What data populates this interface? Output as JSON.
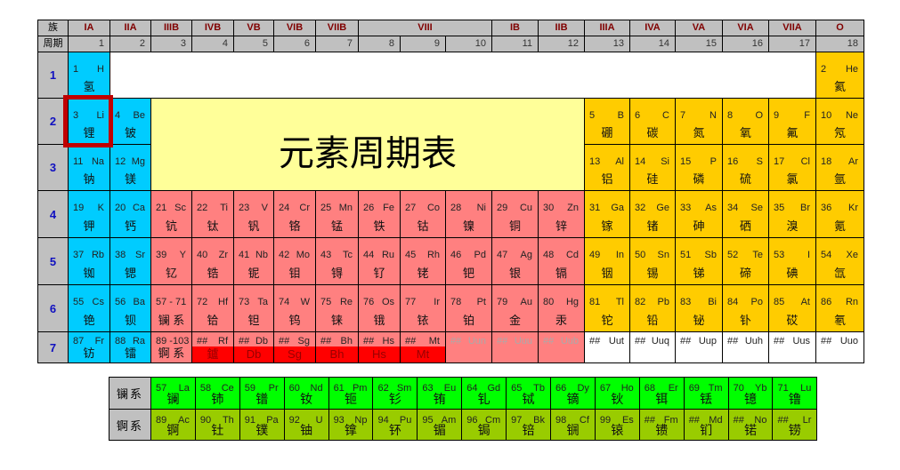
{
  "header": {
    "corner_top": "族",
    "corner_bottom": "周期",
    "groups": [
      {
        "label": "IA",
        "col": 1,
        "span": 1
      },
      {
        "label": "IIA",
        "col": 2,
        "span": 1
      },
      {
        "label": "IIIB",
        "col": 3,
        "span": 1
      },
      {
        "label": "IVB",
        "col": 4,
        "span": 1
      },
      {
        "label": "VB",
        "col": 5,
        "span": 1
      },
      {
        "label": "VIB",
        "col": 6,
        "span": 1
      },
      {
        "label": "VIIB",
        "col": 7,
        "span": 1
      },
      {
        "label": "VIII",
        "col": 8,
        "span": 3
      },
      {
        "label": "IB",
        "col": 11,
        "span": 1
      },
      {
        "label": "IIB",
        "col": 12,
        "span": 1
      },
      {
        "label": "IIIA",
        "col": 13,
        "span": 1
      },
      {
        "label": "IVA",
        "col": 14,
        "span": 1
      },
      {
        "label": "VA",
        "col": 15,
        "span": 1
      },
      {
        "label": "VIA",
        "col": 16,
        "span": 1
      },
      {
        "label": "VIIA",
        "col": 17,
        "span": 1
      },
      {
        "label": "O",
        "col": 18,
        "span": 1
      }
    ],
    "group_numbers": [
      "1",
      "2",
      "3",
      "4",
      "5",
      "6",
      "7",
      "8",
      "9",
      "10",
      "11",
      "12",
      "13",
      "14",
      "15",
      "16",
      "17",
      "18"
    ]
  },
  "periods": [
    "1",
    "2",
    "3",
    "4",
    "5",
    "6",
    "7"
  ],
  "title": "元素周期表",
  "highlighted_element": "Li",
  "colors": {
    "s_block": "#00ccff",
    "d_block": "#ff8080",
    "p_block": "#ffcc00",
    "lanthanide": "#00ff00",
    "actinide": "#99cc00",
    "title_bg": "#ffff99",
    "highlight": "#c00000",
    "superheavy": "#ff0000"
  },
  "elements": [
    [
      "1",
      "H",
      "氢",
      1,
      1,
      "s"
    ],
    [
      "2",
      "He",
      "氦",
      1,
      18,
      "p"
    ],
    [
      "3",
      "Li",
      "锂",
      2,
      1,
      "s"
    ],
    [
      "4",
      "Be",
      "铍",
      2,
      2,
      "s"
    ],
    [
      "5",
      "B",
      "硼",
      2,
      13,
      "p"
    ],
    [
      "6",
      "C",
      "碳",
      2,
      14,
      "p"
    ],
    [
      "7",
      "N",
      "氮",
      2,
      15,
      "p"
    ],
    [
      "8",
      "O",
      "氧",
      2,
      16,
      "p"
    ],
    [
      "9",
      "F",
      "氟",
      2,
      17,
      "p"
    ],
    [
      "10",
      "Ne",
      "氖",
      2,
      18,
      "p"
    ],
    [
      "11",
      "Na",
      "钠",
      3,
      1,
      "s"
    ],
    [
      "12",
      "Mg",
      "镁",
      3,
      2,
      "s"
    ],
    [
      "13",
      "Al",
      "铝",
      3,
      13,
      "p"
    ],
    [
      "14",
      "Si",
      "硅",
      3,
      14,
      "p"
    ],
    [
      "15",
      "P",
      "磷",
      3,
      15,
      "p"
    ],
    [
      "16",
      "S",
      "硫",
      3,
      16,
      "p"
    ],
    [
      "17",
      "Cl",
      "氯",
      3,
      17,
      "p"
    ],
    [
      "18",
      "Ar",
      "氩",
      3,
      18,
      "p"
    ],
    [
      "19",
      "K",
      "钾",
      4,
      1,
      "s"
    ],
    [
      "20",
      "Ca",
      "钙",
      4,
      2,
      "s"
    ],
    [
      "21",
      "Sc",
      "钪",
      4,
      3,
      "d"
    ],
    [
      "22",
      "Ti",
      "钛",
      4,
      4,
      "d"
    ],
    [
      "23",
      "V",
      "钒",
      4,
      5,
      "d"
    ],
    [
      "24",
      "Cr",
      "铬",
      4,
      6,
      "d"
    ],
    [
      "25",
      "Mn",
      "锰",
      4,
      7,
      "d"
    ],
    [
      "26",
      "Fe",
      "铁",
      4,
      8,
      "d"
    ],
    [
      "27",
      "Co",
      "钴",
      4,
      9,
      "d"
    ],
    [
      "28",
      "Ni",
      "镍",
      4,
      10,
      "d"
    ],
    [
      "29",
      "Cu",
      "铜",
      4,
      11,
      "d"
    ],
    [
      "30",
      "Zn",
      "锌",
      4,
      12,
      "d"
    ],
    [
      "31",
      "Ga",
      "镓",
      4,
      13,
      "p"
    ],
    [
      "32",
      "Ge",
      "锗",
      4,
      14,
      "p"
    ],
    [
      "33",
      "As",
      "砷",
      4,
      15,
      "p"
    ],
    [
      "34",
      "Se",
      "硒",
      4,
      16,
      "p"
    ],
    [
      "35",
      "Br",
      "溴",
      4,
      17,
      "p"
    ],
    [
      "36",
      "Kr",
      "氪",
      4,
      18,
      "p"
    ],
    [
      "37",
      "Rb",
      "铷",
      5,
      1,
      "s"
    ],
    [
      "38",
      "Sr",
      "锶",
      5,
      2,
      "s"
    ],
    [
      "39",
      "Y",
      "钇",
      5,
      3,
      "d"
    ],
    [
      "40",
      "Zr",
      "锆",
      5,
      4,
      "d"
    ],
    [
      "41",
      "Nb",
      "铌",
      5,
      5,
      "d"
    ],
    [
      "42",
      "Mo",
      "钼",
      5,
      6,
      "d"
    ],
    [
      "43",
      "Tc",
      "锝",
      5,
      7,
      "d"
    ],
    [
      "44",
      "Ru",
      "钌",
      5,
      8,
      "d"
    ],
    [
      "45",
      "Rh",
      "铑",
      5,
      9,
      "d"
    ],
    [
      "46",
      "Pd",
      "钯",
      5,
      10,
      "d"
    ],
    [
      "47",
      "Ag",
      "银",
      5,
      11,
      "d"
    ],
    [
      "48",
      "Cd",
      "镉",
      5,
      12,
      "d"
    ],
    [
      "49",
      "In",
      "铟",
      5,
      13,
      "p"
    ],
    [
      "50",
      "Sn",
      "锡",
      5,
      14,
      "p"
    ],
    [
      "51",
      "Sb",
      "锑",
      5,
      15,
      "p"
    ],
    [
      "52",
      "Te",
      "碲",
      5,
      16,
      "p"
    ],
    [
      "53",
      "I",
      "碘",
      5,
      17,
      "p"
    ],
    [
      "54",
      "Xe",
      "氙",
      5,
      18,
      "p"
    ],
    [
      "55",
      "Cs",
      "铯",
      6,
      1,
      "s"
    ],
    [
      "56",
      "Ba",
      "钡",
      6,
      2,
      "s"
    ],
    [
      "57 - 71",
      "",
      "镧 系",
      6,
      3,
      "d"
    ],
    [
      "72",
      "Hf",
      "铪",
      6,
      4,
      "d"
    ],
    [
      "73",
      "Ta",
      "钽",
      6,
      5,
      "d"
    ],
    [
      "74",
      "W",
      "钨",
      6,
      6,
      "d"
    ],
    [
      "75",
      "Re",
      "铼",
      6,
      7,
      "d"
    ],
    [
      "76",
      "Os",
      "锇",
      6,
      8,
      "d"
    ],
    [
      "77",
      "Ir",
      "铱",
      6,
      9,
      "d"
    ],
    [
      "78",
      "Pt",
      "铂",
      6,
      10,
      "d"
    ],
    [
      "79",
      "Au",
      "金",
      6,
      11,
      "d"
    ],
    [
      "80",
      "Hg",
      "汞",
      6,
      12,
      "d"
    ],
    [
      "81",
      "Tl",
      "铊",
      6,
      13,
      "p"
    ],
    [
      "82",
      "Pb",
      "铅",
      6,
      14,
      "p"
    ],
    [
      "83",
      "Bi",
      "铋",
      6,
      15,
      "p"
    ],
    [
      "84",
      "Po",
      "钋",
      6,
      16,
      "p"
    ],
    [
      "85",
      "At",
      "砹",
      6,
      17,
      "p"
    ],
    [
      "86",
      "Rn",
      "氡",
      6,
      18,
      "p"
    ],
    [
      "87",
      "Fr",
      "钫",
      7,
      1,
      "s"
    ],
    [
      "88",
      "Ra",
      "镭",
      7,
      2,
      "s"
    ],
    [
      "89 -103",
      "",
      "锕 系",
      7,
      3,
      "d"
    ],
    [
      "##",
      "Rf",
      "鑪",
      7,
      4,
      "r"
    ],
    [
      "##",
      "Db",
      "Db",
      7,
      5,
      "r"
    ],
    [
      "##",
      "Sg",
      "Sg",
      7,
      6,
      "r"
    ],
    [
      "##",
      "Bh",
      "Bh",
      7,
      7,
      "r"
    ],
    [
      "##",
      "Hs",
      "Hs",
      7,
      8,
      "r"
    ],
    [
      "##",
      "Mt",
      "Mt",
      7,
      9,
      "r"
    ],
    [
      "##",
      "Uun",
      "",
      7,
      10,
      "g"
    ],
    [
      "##",
      "Uuu",
      "",
      7,
      11,
      "g"
    ],
    [
      "##",
      "Uub",
      "",
      7,
      12,
      "g"
    ],
    [
      "##",
      "Uut",
      "",
      7,
      13,
      "u"
    ],
    [
      "##",
      "Uuq",
      "",
      7,
      14,
      "u"
    ],
    [
      "##",
      "Uup",
      "",
      7,
      15,
      "u"
    ],
    [
      "##",
      "Uuh",
      "",
      7,
      16,
      "u"
    ],
    [
      "##",
      "Uus",
      "",
      7,
      17,
      "u"
    ],
    [
      "##",
      "Uuo",
      "",
      7,
      18,
      "u"
    ]
  ],
  "lanthanides": {
    "label": "镧系",
    "items": [
      [
        "57",
        "La",
        "镧"
      ],
      [
        "58",
        "Ce",
        "铈"
      ],
      [
        "59",
        "Pr",
        "镨"
      ],
      [
        "60",
        "Nd",
        "钕"
      ],
      [
        "61",
        "Pm",
        "钷"
      ],
      [
        "62",
        "Sm",
        "钐"
      ],
      [
        "63",
        "Eu",
        "铕"
      ],
      [
        "64",
        "Gd",
        "钆"
      ],
      [
        "65",
        "Tb",
        "铽"
      ],
      [
        "66",
        "Dy",
        "镝"
      ],
      [
        "67",
        "Ho",
        "钬"
      ],
      [
        "68",
        "Er",
        "铒"
      ],
      [
        "69",
        "Tm",
        "铥"
      ],
      [
        "70",
        "Yb",
        "镱"
      ],
      [
        "71",
        "Lu",
        "镥"
      ]
    ]
  },
  "actinides": {
    "label": "锕系",
    "items": [
      [
        "89",
        "Ac",
        "锕"
      ],
      [
        "90",
        "Th",
        "钍"
      ],
      [
        "91",
        "Pa",
        "镤"
      ],
      [
        "92",
        "U",
        "铀"
      ],
      [
        "93",
        "Np",
        "镎"
      ],
      [
        "94",
        "Pu",
        "钚"
      ],
      [
        "95",
        "Am",
        "镅"
      ],
      [
        "96",
        "Cm",
        "锔"
      ],
      [
        "97",
        "Bk",
        "锫"
      ],
      [
        "98",
        "Cf",
        "锎"
      ],
      [
        "99",
        "Es",
        "锿"
      ],
      [
        "##",
        "Fm",
        "镄"
      ],
      [
        "##",
        "Md",
        "钔"
      ],
      [
        "##",
        "No",
        "锘"
      ],
      [
        "##",
        "Lr",
        "铹"
      ]
    ]
  }
}
